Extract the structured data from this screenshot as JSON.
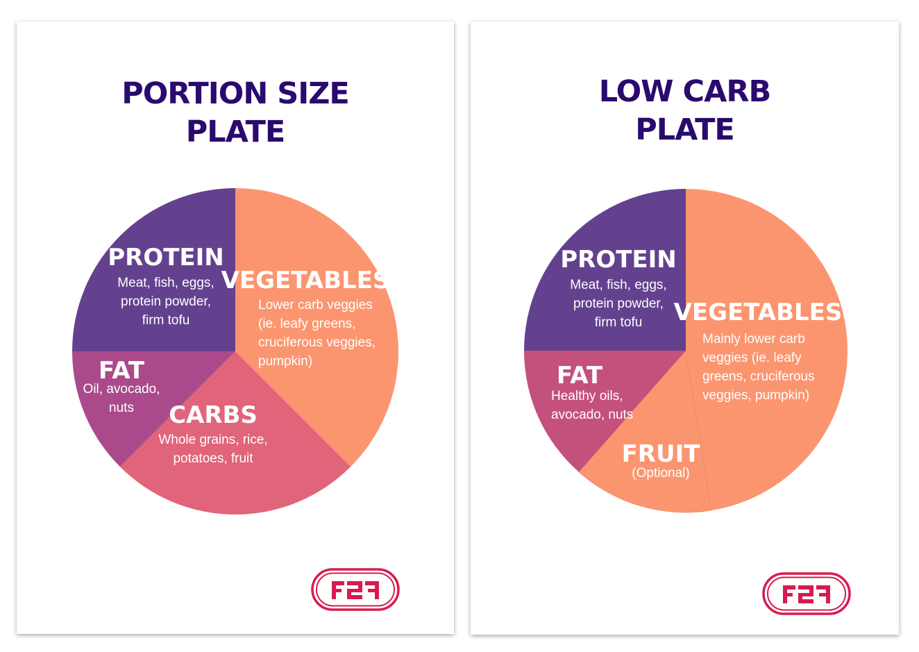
{
  "brand": {
    "title_color": "#2a0a6e",
    "logo_color": "#d81b4f"
  },
  "chart_data": [
    {
      "type": "pie",
      "title_lines": [
        "PORTION SIZE",
        "PLATE"
      ],
      "start_angle_deg": 0,
      "slices": [
        {
          "key": "vegetables",
          "name": "VEGETABLES",
          "value": 37.5,
          "color": "#fb9570",
          "desc": [
            "Lower carb veggies",
            "(ie. leafy greens,",
            "cruciferous veggies,",
            "pumpkin)"
          ]
        },
        {
          "key": "carbs",
          "name": "CARBS",
          "value": 25,
          "color": "#e0647a",
          "desc": [
            "Whole grains, rice,",
            "potatoes, fruit"
          ]
        },
        {
          "key": "fat",
          "name": "FAT",
          "value": 12.5,
          "color": "#ab4a8b",
          "desc": [
            "Oil, avocado,",
            "nuts"
          ]
        },
        {
          "key": "protein",
          "name": "PROTEIN",
          "value": 25,
          "color": "#64418f",
          "desc": [
            "Meat, fish, eggs,",
            "protein powder,",
            "firm tofu"
          ]
        }
      ]
    },
    {
      "type": "pie",
      "title_lines": [
        "LOW CARB",
        "PLATE"
      ],
      "start_angle_deg": 0,
      "slices": [
        {
          "key": "vegetables",
          "name": "VEGETABLES",
          "value": 47.5,
          "color": "#fb9570",
          "desc": [
            "Mainly lower carb",
            "veggies (ie. leafy",
            "greens, cruciferous",
            "veggies, pumpkin)"
          ]
        },
        {
          "key": "fruit",
          "name": "FRUIT",
          "value": 14,
          "color": "#fb9570",
          "desc": [
            "(Optional)"
          ]
        },
        {
          "key": "fat",
          "name": "FAT",
          "value": 13.5,
          "color": "#c4507e",
          "desc": [
            "Healthy oils,",
            "avocado, nuts"
          ]
        },
        {
          "key": "protein",
          "name": "PROTEIN",
          "value": 25,
          "color": "#64418f",
          "desc": [
            "Meat, fish, eggs,",
            "protein powder,",
            "firm tofu"
          ]
        }
      ]
    }
  ]
}
